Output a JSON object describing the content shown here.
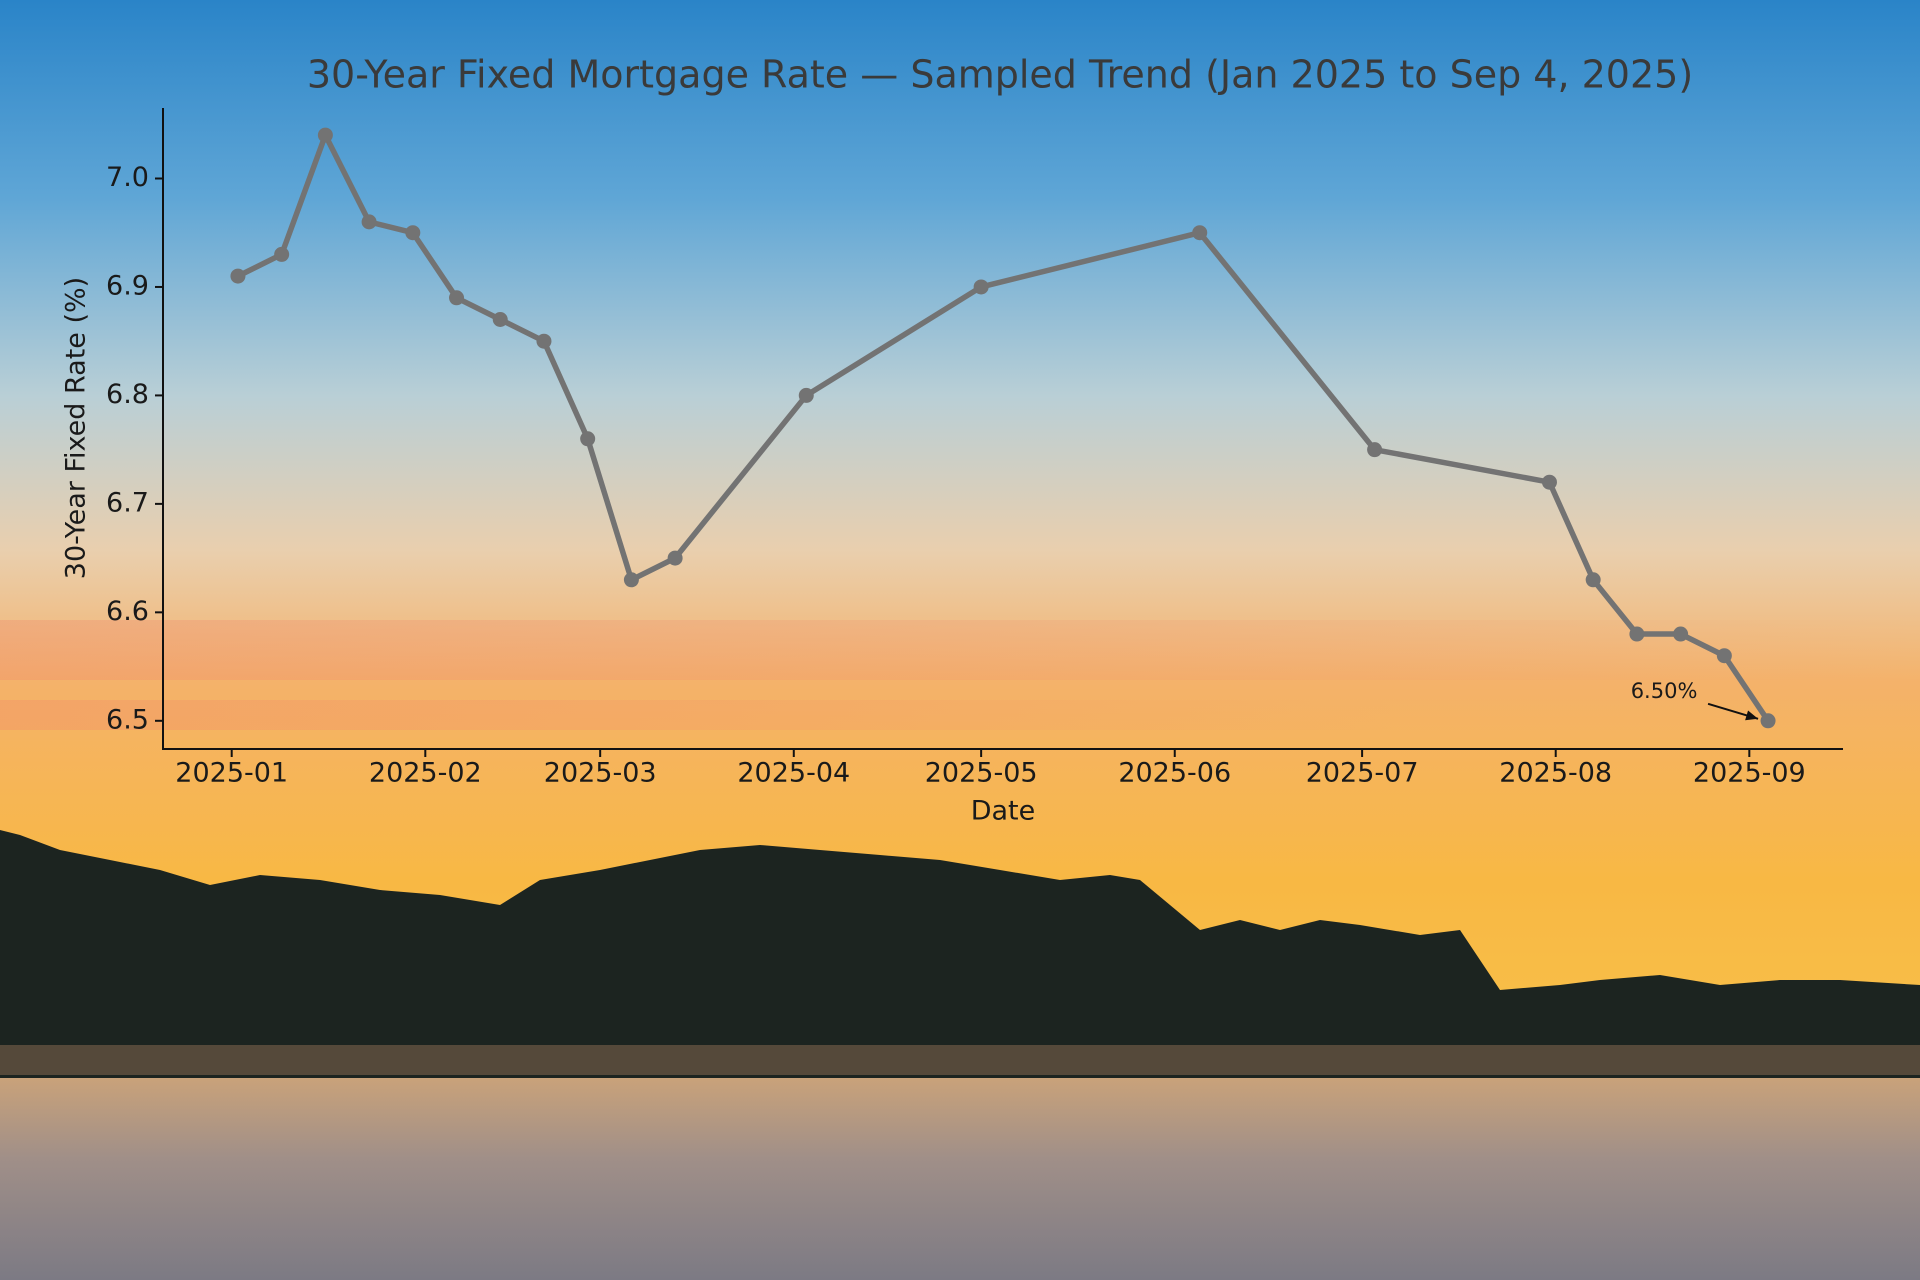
{
  "chart_data": {
    "type": "line",
    "title": "30-Year Fixed Mortgage Rate — Sampled Trend (Jan 2025 to Sep 4, 2025)",
    "x_label": "Date",
    "y_label": "30-Year Fixed Rate (%)",
    "x": [
      "2025-01-02",
      "2025-01-09",
      "2025-01-16",
      "2025-01-23",
      "2025-01-30",
      "2025-02-06",
      "2025-02-13",
      "2025-02-20",
      "2025-02-27",
      "2025-03-06",
      "2025-03-13",
      "2025-04-03",
      "2025-05-01",
      "2025-06-05",
      "2025-07-03",
      "2025-07-31",
      "2025-08-07",
      "2025-08-14",
      "2025-08-21",
      "2025-08-28",
      "2025-09-04"
    ],
    "values": [
      6.91,
      6.93,
      7.04,
      6.96,
      6.95,
      6.89,
      6.87,
      6.85,
      6.76,
      6.63,
      6.65,
      6.8,
      6.9,
      6.95,
      6.75,
      6.72,
      6.63,
      6.58,
      6.58,
      6.56,
      6.5
    ],
    "color": "#737373",
    "xlim": [
      "2024-12-21",
      "2025-09-16"
    ],
    "xticks": [
      "2025-01",
      "2025-02",
      "2025-03",
      "2025-04",
      "2025-05",
      "2025-06",
      "2025-07",
      "2025-08",
      "2025-09"
    ],
    "ylim": [
      6.474,
      7.065
    ],
    "yticks": [
      6.5,
      6.6,
      6.7,
      6.8,
      6.9,
      {
        "value": 7,
        "label": "7.0"
      }
    ],
    "grid": false,
    "annotations": [
      {
        "text": "6.50%",
        "x": "2025-09-04",
        "y": 6.5
      }
    ]
  }
}
